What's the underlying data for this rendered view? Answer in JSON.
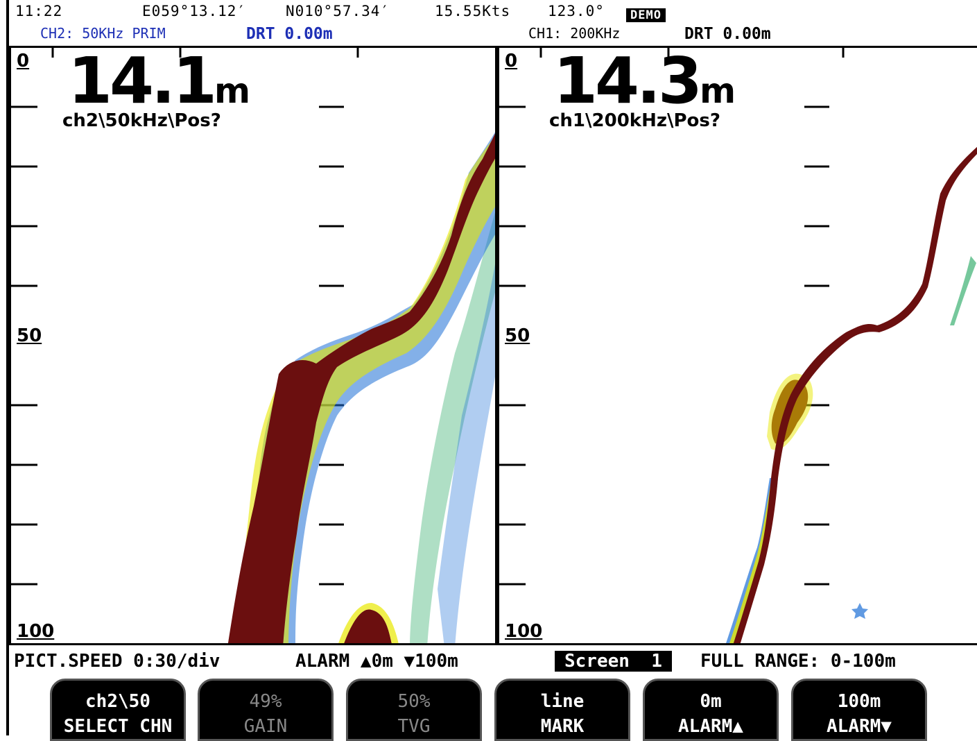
{
  "status": {
    "time": "11:22",
    "longitude": "E059°13.12′",
    "latitude": "N010°57.34′",
    "speed": "15.55Kts",
    "heading": "123.0°",
    "mode": "DEMO"
  },
  "left": {
    "header_channel": "CH2: 50KHz PRIM",
    "header_drt": "DRT 0.00m",
    "depth": "14.1",
    "unit": "m",
    "info": "ch2\\50kHz\\Pos?",
    "scale_top": "0",
    "scale_mid": "50",
    "scale_bottom": "100"
  },
  "right": {
    "header_channel": "CH1: 200KHz",
    "header_drt": "DRT 0.00m",
    "depth": "14.3",
    "unit": "m",
    "info": "ch1\\200kHz\\Pos?",
    "scale_top": "0",
    "scale_mid": "50",
    "scale_bottom": "100"
  },
  "infobar": {
    "pict_speed": "PICT.SPEED 0:30/div",
    "alarm": "ALARM ▲0m ▼100m",
    "screen_label": "Screen",
    "screen_number": "1",
    "full_range": "FULL RANGE: 0-100m"
  },
  "softkeys": [
    {
      "top": "ch2\\50",
      "bottom": "SELECT CHN"
    },
    {
      "top": "49%",
      "bottom": "GAIN"
    },
    {
      "top": "50%",
      "bottom": "TVG"
    },
    {
      "top": "line",
      "bottom": "MARK"
    },
    {
      "top": "0m",
      "bottom": "ALARM▲"
    },
    {
      "top": "100m",
      "bottom": "ALARM▼"
    }
  ],
  "colors": {
    "bottom_echo": "#6b0f0f",
    "echo_yellow": "#e8e800",
    "echo_green": "#1aa35a",
    "echo_blue": "#1d6fd6",
    "header_blue": "#1d2fb5"
  }
}
